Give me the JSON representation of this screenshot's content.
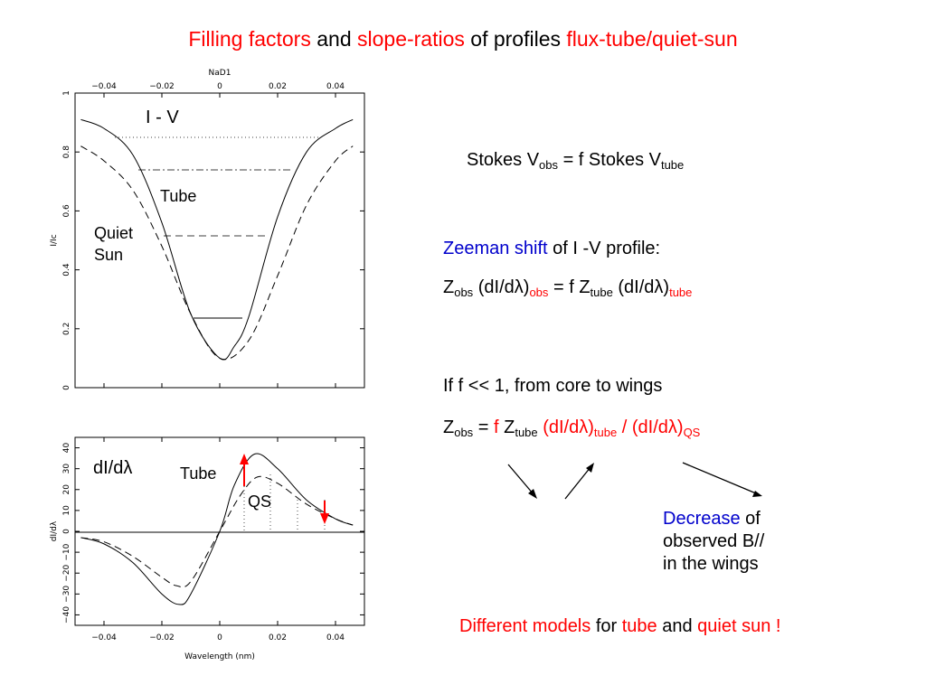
{
  "title": {
    "filling_factors": "Filling factors",
    "and": " and ",
    "slope_ratios": "slope-ratios",
    "of_profiles": " of profiles ",
    "flux_tube": "flux-tube/quiet-sun"
  },
  "top_plot": {
    "top_axis_title": "NaD1",
    "ylabel": "I/Ic",
    "top_ticks": [
      "−0.04",
      "−0.02",
      "0",
      "0.02",
      "0.04"
    ],
    "y_ticks": [
      "0",
      "0.2",
      "0.4",
      "0.6",
      "0.8",
      "1"
    ],
    "label_iv": "I - V",
    "label_tube": "Tube",
    "label_quiet": "Quiet",
    "label_sun": "Sun"
  },
  "bottom_plot": {
    "xlabel": "Wavelength (nm)",
    "ylabel": "dI/dλ",
    "x_ticks": [
      "−0.04",
      "−0.02",
      "0",
      "0.02",
      "0.04"
    ],
    "y_ticks": [
      "−40",
      "−30",
      "−20",
      "−10",
      "0",
      "10",
      "20",
      "30",
      "40"
    ],
    "label_didl": "dI/dλ",
    "label_tube": "Tube",
    "label_qs": "QS"
  },
  "right": {
    "stokes": {
      "a": "Stokes V",
      "a_sub": "obs",
      "b": " = f   Stokes V",
      "b_sub": "tube"
    },
    "zeeman": {
      "blue": "Zeeman shift",
      "rest": " of I -V profile:"
    },
    "zobs1": {
      "z": "Z",
      "z_sub": "obs",
      "mid": "   (dI/dλ)",
      "mid_sub": "obs",
      "eq": " = f   Z",
      "eq_sub": "tube",
      "end": " (dI/dλ)",
      "end_sub": "tube"
    },
    "if_line": "If   f << 1,  from core to wings",
    "zobs2": {
      "z": "Z",
      "z_sub": "obs",
      "eq": " = ",
      "f": "f",
      "zt": "     Z",
      "zt_sub": "tube",
      "d1": "    (dI/dλ)",
      "d1_sub": "tube",
      "slash": " / (dI/dλ)",
      "d2_sub": "QS"
    },
    "decrease": {
      "blue": "Decrease",
      "rest": " of",
      "line2": "observed B//",
      "line3": "in the  wings"
    },
    "models": {
      "a": "Different models",
      "b": " for ",
      "c": "tube",
      "d": " and ",
      "e": "quiet sun !"
    }
  },
  "colors": {
    "red": "#ff0000",
    "blue": "#0000cc"
  },
  "chart_data": [
    {
      "type": "line",
      "title": "NaD1",
      "xlabel": "",
      "ylabel": "I/Ic",
      "xlim": [
        -0.05,
        0.05
      ],
      "ylim": [
        0,
        1
      ],
      "series": [
        {
          "name": "Tube",
          "style": "solid",
          "x": [
            -0.048,
            -0.04,
            -0.03,
            -0.02,
            -0.01,
            0,
            0.005,
            0.01,
            0.02,
            0.03,
            0.04,
            0.046
          ],
          "y": [
            0.91,
            0.88,
            0.79,
            0.56,
            0.25,
            0.1,
            0.14,
            0.24,
            0.58,
            0.8,
            0.88,
            0.91
          ]
        },
        {
          "name": "Quiet Sun",
          "style": "dashed",
          "x": [
            -0.048,
            -0.04,
            -0.03,
            -0.02,
            -0.01,
            0,
            0.01,
            0.02,
            0.03,
            0.04,
            0.046
          ],
          "y": [
            0.82,
            0.77,
            0.67,
            0.48,
            0.25,
            0.1,
            0.16,
            0.38,
            0.62,
            0.77,
            0.82
          ]
        }
      ]
    },
    {
      "type": "line",
      "xlabel": "Wavelength (nm)",
      "ylabel": "dI/dλ",
      "xlim": [
        -0.05,
        0.05
      ],
      "ylim": [
        -45,
        45
      ],
      "series": [
        {
          "name": "Tube",
          "style": "solid",
          "x": [
            -0.048,
            -0.04,
            -0.03,
            -0.02,
            -0.014,
            -0.01,
            0,
            0.005,
            0.012,
            0.02,
            0.03,
            0.04,
            0.046
          ],
          "y": [
            -3,
            -6,
            -15,
            -30,
            -35,
            -30,
            0,
            22,
            37,
            30,
            15,
            6,
            3
          ]
        },
        {
          "name": "QS",
          "style": "dashed",
          "x": [
            -0.048,
            -0.04,
            -0.03,
            -0.02,
            -0.015,
            -0.01,
            0,
            0.007,
            0.013,
            0.02,
            0.03,
            0.04,
            0.046
          ],
          "y": [
            -3,
            -5,
            -12,
            -22,
            -26,
            -24,
            0,
            17,
            26,
            23,
            13,
            6,
            3
          ]
        }
      ]
    }
  ]
}
